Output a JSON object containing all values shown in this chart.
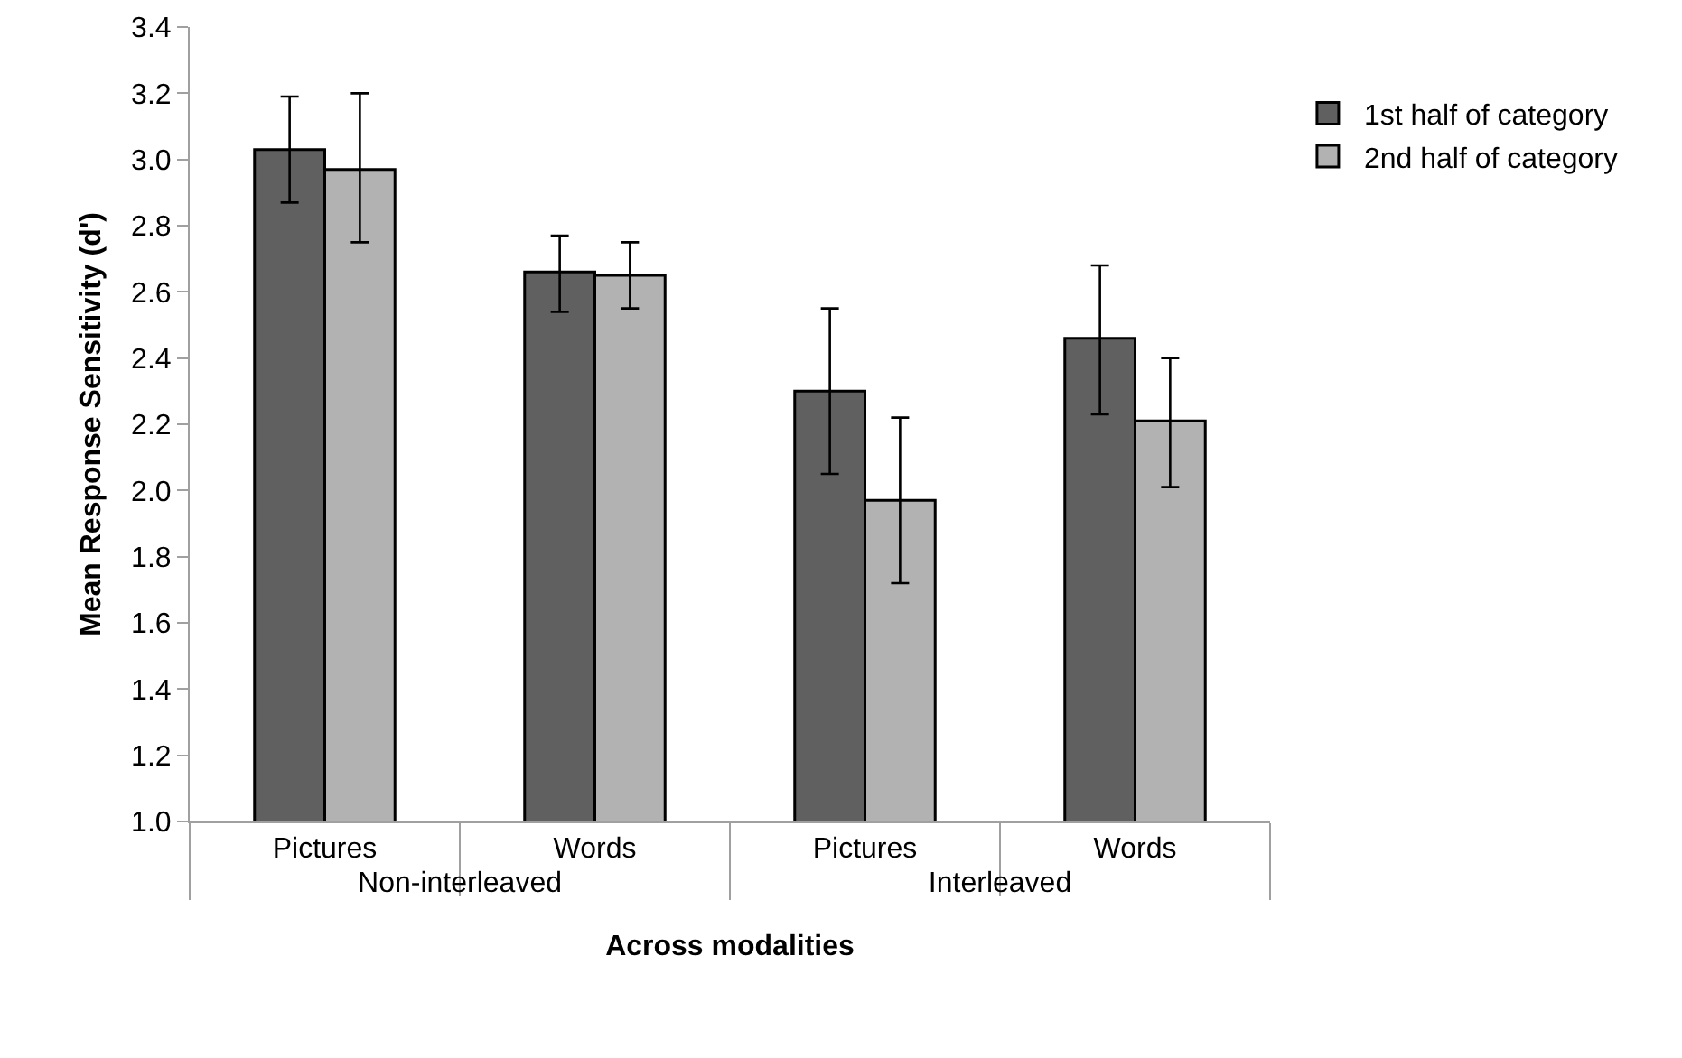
{
  "chart_data": {
    "type": "bar",
    "xlabel": "Across modalities",
    "ylabel": "Mean Response Sensitivity (d')",
    "categories": [
      "Pictures",
      "Words",
      "Pictures",
      "Words"
    ],
    "annotations": [
      "Non-interleaved",
      "Interleaved"
    ],
    "series": [
      {
        "name": "1st half of category",
        "color": "#606060",
        "values": [
          3.03,
          2.66,
          2.3,
          2.46
        ],
        "errors": [
          [
            2.87,
            3.19
          ],
          [
            2.54,
            2.77
          ],
          [
            2.05,
            2.55
          ],
          [
            2.23,
            2.68
          ]
        ]
      },
      {
        "name": "2nd half of category",
        "color": "#b2b2b2",
        "values": [
          2.97,
          2.65,
          1.97,
          2.21
        ],
        "errors": [
          [
            2.75,
            3.2
          ],
          [
            2.55,
            2.75
          ],
          [
            1.72,
            2.22
          ],
          [
            2.01,
            2.4
          ]
        ]
      }
    ],
    "ylim": [
      1.0,
      3.4
    ],
    "yticks": [
      {
        "value": 1.0,
        "label": "1.0"
      },
      {
        "value": 1.2,
        "label": "1.2"
      },
      {
        "value": 1.4,
        "label": "1.4"
      },
      {
        "value": 1.6,
        "label": "1.6"
      },
      {
        "value": 1.8,
        "label": "1.8"
      },
      {
        "value": 2.0,
        "label": "2.0"
      },
      {
        "value": 2.2,
        "label": "2.2"
      },
      {
        "value": 2.4,
        "label": "2.4"
      },
      {
        "value": 2.6,
        "label": "2.6"
      },
      {
        "value": 2.8,
        "label": "2.8"
      },
      {
        "value": 3.0,
        "label": "3.0"
      },
      {
        "value": 3.2,
        "label": "3.2"
      },
      {
        "value": 3.4,
        "label": "3.4"
      }
    ],
    "grid": false,
    "legend": "right"
  }
}
